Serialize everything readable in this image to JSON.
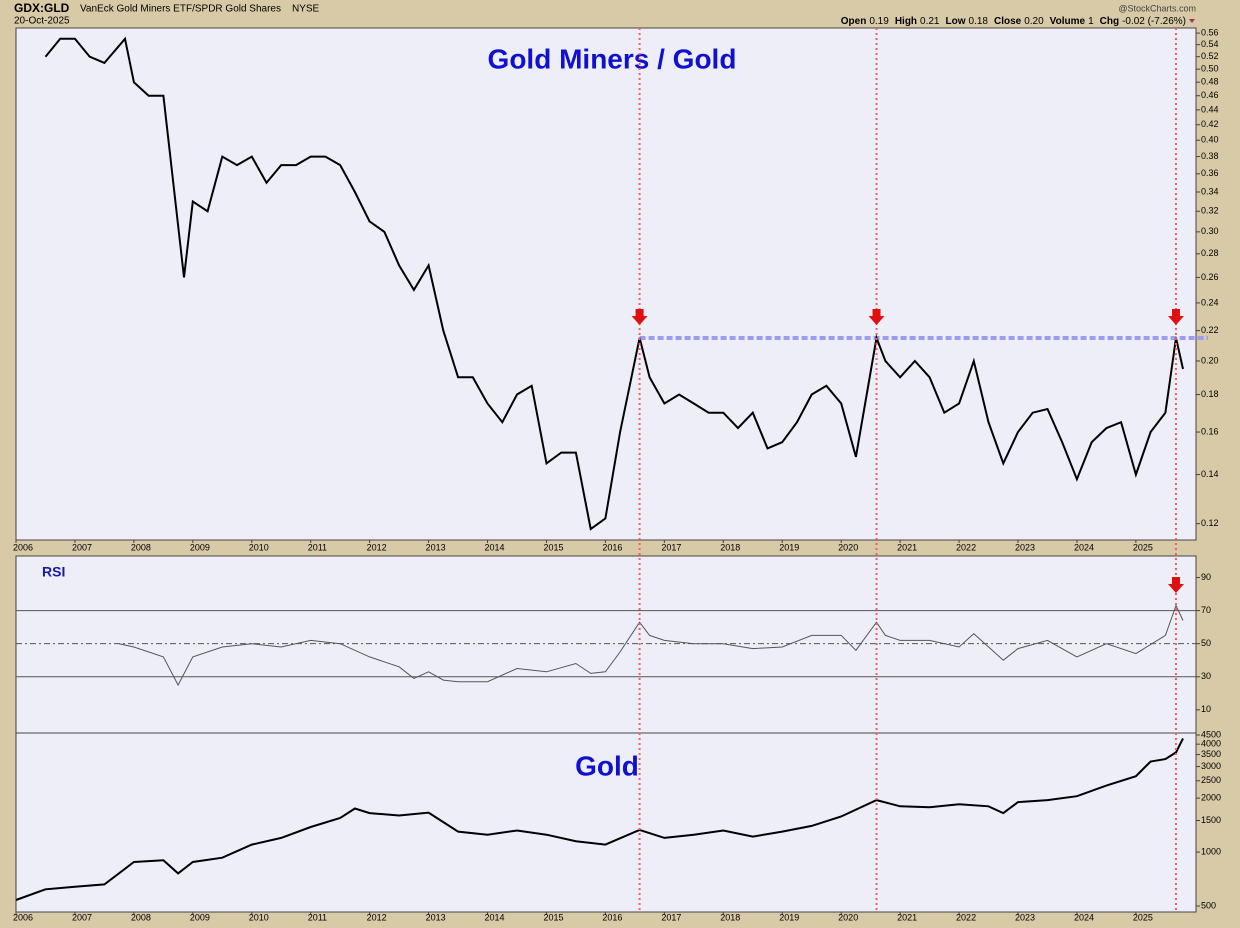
{
  "header": {
    "symbol": "GDX:GLD",
    "name": "VanEck Gold Miners ETF/SPDR Gold Shares",
    "exchange": "NYSE",
    "date": "20-Oct-2025",
    "source": "@StockCharts.com",
    "quote": [
      {
        "label": "Open",
        "value": "0.19"
      },
      {
        "label": "High",
        "value": "0.21"
      },
      {
        "label": "Low",
        "value": "0.18"
      },
      {
        "label": "Close",
        "value": "0.20"
      },
      {
        "label": "Volume",
        "value": "1"
      },
      {
        "label": "Chg",
        "value": "-0.02 (-7.26%)"
      }
    ]
  },
  "markers": [
    2016.58,
    2020.6,
    2025.68
  ],
  "chart_data": [
    {
      "type": "line",
      "title": "Gold Miners / Gold",
      "log_scale": true,
      "color": "#000000",
      "reference_level": 0.215,
      "xlim": [
        2006,
        2026.02
      ],
      "xticks": [
        2006,
        2007,
        2008,
        2009,
        2010,
        2011,
        2012,
        2013,
        2014,
        2015,
        2016,
        2017,
        2018,
        2019,
        2020,
        2021,
        2022,
        2023,
        2024,
        2025
      ],
      "ylim": [
        0.114,
        0.569
      ],
      "yticks": [
        0.12,
        0.14,
        0.16,
        0.18,
        {
          "value": 0.2,
          "label": "0.20"
        },
        0.22,
        0.24,
        0.26,
        0.28,
        {
          "value": 0.3,
          "label": "0.30"
        },
        0.32,
        0.34,
        0.36,
        0.38,
        {
          "value": 0.4,
          "label": "0.40"
        },
        0.42,
        0.44,
        0.46,
        0.48,
        {
          "value": 0.5,
          "label": "0.50"
        },
        0.52,
        0.54,
        0.56
      ],
      "x": [
        2006.5,
        2006.75,
        2007,
        2007.25,
        2007.5,
        2007.85,
        2008,
        2008.25,
        2008.5,
        2008.85,
        2009,
        2009.25,
        2009.5,
        2009.75,
        2010,
        2010.25,
        2010.5,
        2010.75,
        2011,
        2011.25,
        2011.5,
        2011.75,
        2012,
        2012.25,
        2012.5,
        2012.75,
        2013,
        2013.25,
        2013.5,
        2013.75,
        2014,
        2014.25,
        2014.5,
        2014.75,
        2015,
        2015.25,
        2015.5,
        2015.75,
        2016,
        2016.25,
        2016.58,
        2016.75,
        2017,
        2017.25,
        2017.5,
        2017.75,
        2018,
        2018.25,
        2018.5,
        2018.75,
        2019,
        2019.25,
        2019.5,
        2019.75,
        2020,
        2020.25,
        2020.6,
        2020.75,
        2021,
        2021.25,
        2021.5,
        2021.75,
        2022,
        2022.25,
        2022.5,
        2022.75,
        2023,
        2023.25,
        2023.5,
        2023.75,
        2024,
        2024.25,
        2024.5,
        2024.75,
        2025,
        2025.25,
        2025.5,
        2025.68,
        2025.8
      ],
      "values": [
        0.52,
        0.55,
        0.55,
        0.52,
        0.51,
        0.55,
        0.48,
        0.46,
        0.46,
        0.26,
        0.33,
        0.32,
        0.38,
        0.37,
        0.38,
        0.35,
        0.37,
        0.37,
        0.38,
        0.38,
        0.37,
        0.34,
        0.31,
        0.3,
        0.27,
        0.25,
        0.27,
        0.22,
        0.19,
        0.19,
        0.175,
        0.165,
        0.18,
        0.185,
        0.145,
        0.15,
        0.15,
        0.118,
        0.122,
        0.16,
        0.215,
        0.19,
        0.175,
        0.18,
        0.175,
        0.17,
        0.17,
        0.162,
        0.17,
        0.152,
        0.155,
        0.165,
        0.18,
        0.185,
        0.175,
        0.148,
        0.215,
        0.2,
        0.19,
        0.2,
        0.19,
        0.17,
        0.175,
        0.2,
        0.165,
        0.145,
        0.16,
        0.17,
        0.172,
        0.155,
        0.138,
        0.155,
        0.162,
        0.165,
        0.14,
        0.16,
        0.17,
        0.215,
        0.195
      ]
    },
    {
      "type": "line",
      "title": "RSI",
      "log_scale": false,
      "color": "#555555",
      "xlim": [
        2006,
        2026.02
      ],
      "ylim": [
        -4,
        103
      ],
      "yticks": [
        10,
        30,
        50,
        70,
        90
      ],
      "x": [
        2007.75,
        2008,
        2008.5,
        2008.75,
        2009,
        2009.5,
        2010,
        2010.5,
        2011,
        2011.5,
        2012,
        2012.5,
        2012.75,
        2013,
        2013.25,
        2013.5,
        2014,
        2014.5,
        2015,
        2015.5,
        2015.75,
        2016,
        2016.25,
        2016.58,
        2016.75,
        2017,
        2017.5,
        2018,
        2018.5,
        2019,
        2019.5,
        2020,
        2020.25,
        2020.6,
        2020.75,
        2021,
        2021.5,
        2022,
        2022.25,
        2022.75,
        2023,
        2023.5,
        2024,
        2024.5,
        2025,
        2025.5,
        2025.68,
        2025.8
      ],
      "values": [
        50,
        48,
        42,
        25,
        42,
        48,
        50,
        48,
        52,
        50,
        42,
        36,
        29,
        33,
        28,
        27,
        27,
        35,
        33,
        38,
        32,
        33,
        45,
        63,
        55,
        52,
        50,
        50,
        47,
        48,
        55,
        55,
        46,
        63,
        55,
        52,
        52,
        48,
        56,
        40,
        47,
        52,
        42,
        50,
        44,
        55,
        73,
        64
      ]
    },
    {
      "type": "line",
      "title": "Gold",
      "log_scale": true,
      "color": "#000000",
      "xlim": [
        2006,
        2026.02
      ],
      "xticks": [
        2006,
        2007,
        2008,
        2009,
        2010,
        2011,
        2012,
        2013,
        2014,
        2015,
        2016,
        2017,
        2018,
        2019,
        2020,
        2021,
        2022,
        2023,
        2024,
        2025
      ],
      "ylim": [
        463,
        4617
      ],
      "yticks": [
        500,
        1000,
        1500,
        2000,
        2500,
        3000,
        3500,
        4000,
        4500
      ],
      "x": [
        2006,
        2006.5,
        2007,
        2007.5,
        2008,
        2008.5,
        2008.75,
        2009,
        2009.5,
        2010,
        2010.5,
        2011,
        2011.5,
        2011.75,
        2012,
        2012.5,
        2013,
        2013.5,
        2014,
        2014.5,
        2015,
        2015.5,
        2016,
        2016.58,
        2017,
        2017.5,
        2018,
        2018.5,
        2019,
        2019.5,
        2020,
        2020.6,
        2021,
        2021.5,
        2022,
        2022.5,
        2022.75,
        2023,
        2023.5,
        2024,
        2024.5,
        2025,
        2025.25,
        2025.5,
        2025.68,
        2025.8
      ],
      "values": [
        540,
        620,
        640,
        660,
        880,
        900,
        760,
        880,
        930,
        1100,
        1200,
        1380,
        1550,
        1750,
        1650,
        1600,
        1660,
        1300,
        1250,
        1320,
        1250,
        1150,
        1100,
        1330,
        1200,
        1250,
        1320,
        1220,
        1300,
        1400,
        1580,
        1950,
        1800,
        1780,
        1850,
        1800,
        1650,
        1900,
        1950,
        2050,
        2350,
        2650,
        3200,
        3300,
        3600,
        4300
      ]
    }
  ]
}
